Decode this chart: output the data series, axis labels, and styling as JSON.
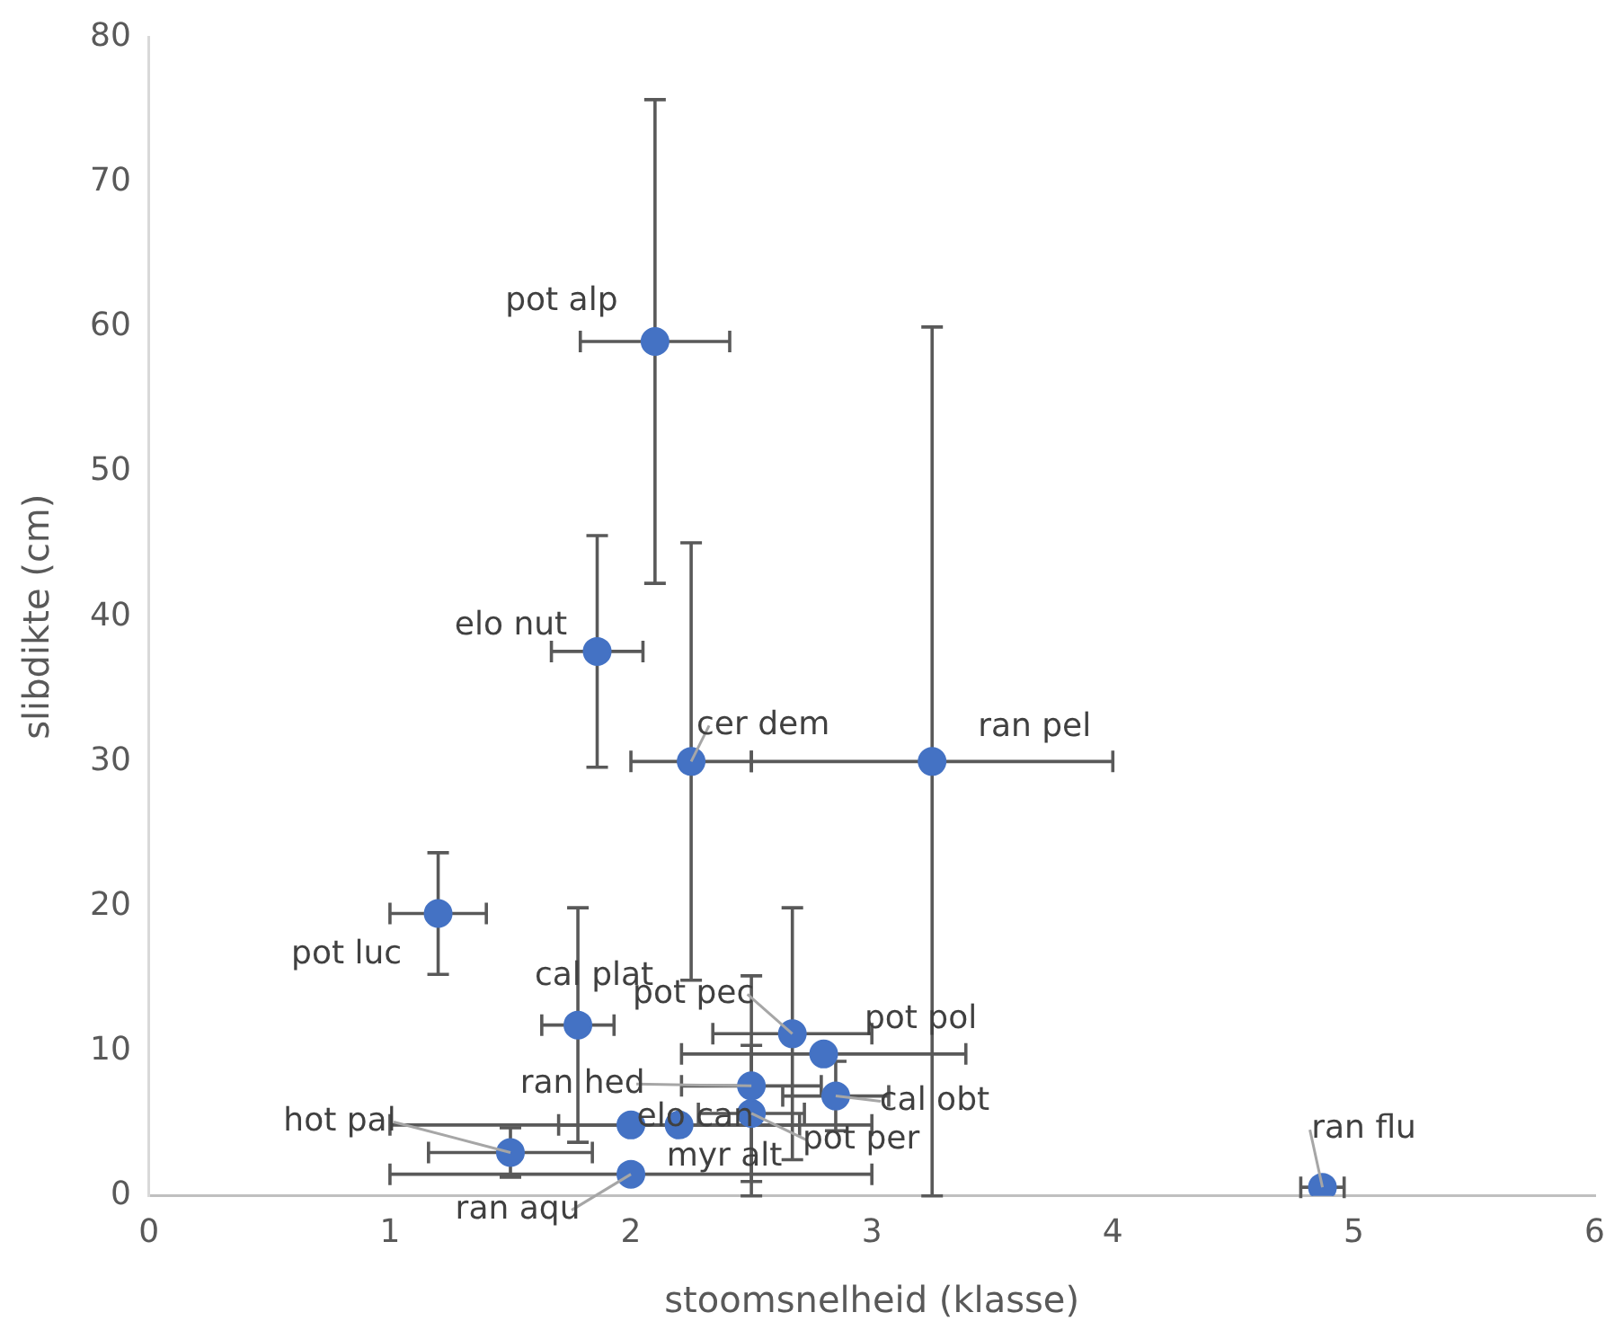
{
  "chart_data": {
    "type": "scatter",
    "xlabel": "stoomsnelheid (klasse)",
    "ylabel": "slibdikte (cm)",
    "x": [
      2.1,
      1.86,
      2.25,
      3.25,
      1.2,
      1.78,
      2.67,
      2.8,
      2.5,
      2.2,
      2.0,
      2.0,
      1.5,
      2.85,
      2.5,
      4.87
    ],
    "values": [
      59,
      37.6,
      30,
      30,
      19.5,
      11.8,
      11.2,
      9.8,
      7.6,
      4.9,
      4.9,
      1.5,
      3.0,
      6.9,
      5.7,
      0.6
    ],
    "errors": [
      16.7,
      8.0,
      15.1,
      30,
      4.2,
      8.1,
      8.7,
      null,
      7.6,
      null,
      null,
      null,
      1.7,
      2.4,
      4.7,
      null
    ],
    "xerrors": [
      0.31,
      0.19,
      0.25,
      0.75,
      0.2,
      0.15,
      0.33,
      0.59,
      0.29,
      0.5,
      1.0,
      1.0,
      0.34,
      0.22,
      0.22,
      0.09
    ],
    "color": "#4472c4",
    "marker": "circle",
    "grid": false,
    "xlim": [
      0,
      6
    ],
    "xticks": [
      0,
      1,
      2,
      3,
      4,
      5,
      6
    ],
    "ylim": [
      0,
      80
    ],
    "yticks": [
      0,
      10,
      20,
      30,
      40,
      50,
      60,
      70,
      80
    ],
    "annotations": [
      {
        "text": "pot alp",
        "x": 2.1,
        "y": 59
      },
      {
        "text": "elo nut",
        "x": 1.86,
        "y": 37.6
      },
      {
        "text": "cer dem",
        "x": 2.25,
        "y": 30
      },
      {
        "text": "ran pel",
        "x": 3.25,
        "y": 30
      },
      {
        "text": "pot luc",
        "x": 1.2,
        "y": 19.5
      },
      {
        "text": "cal plat",
        "x": 1.78,
        "y": 11.8
      },
      {
        "text": "pot pec",
        "x": 2.67,
        "y": 11.2
      },
      {
        "text": "pot pol",
        "x": 2.8,
        "y": 9.8
      },
      {
        "text": "ran hed",
        "x": 2.5,
        "y": 7.6
      },
      {
        "text": "elo can",
        "x": 2.2,
        "y": 4.9
      },
      {
        "text": "myr alt",
        "x": 2.0,
        "y": 4.9
      },
      {
        "text": "ran aqu",
        "x": 2.0,
        "y": 1.5
      },
      {
        "text": "hot pal",
        "x": 1.5,
        "y": 3.0
      },
      {
        "text": "cal obt",
        "x": 2.85,
        "y": 6.9
      },
      {
        "text": "pot per",
        "x": 2.5,
        "y": 5.7
      },
      {
        "text": "ran flu",
        "x": 4.87,
        "y": 0.6
      }
    ]
  }
}
